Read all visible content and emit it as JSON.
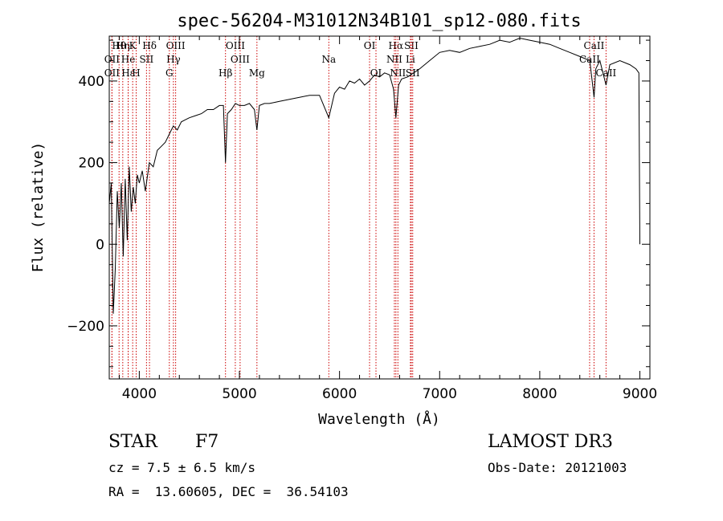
{
  "chart_data": {
    "type": "line",
    "title": "spec-56204-M31012N34B101_sp12-080.fits",
    "xlabel": "Wavelength (Å)",
    "ylabel": "Flux (relative)",
    "xlim": [
      3700,
      9100
    ],
    "ylim": [
      -330,
      510
    ],
    "xticks": [
      4000,
      5000,
      6000,
      7000,
      8000,
      9000
    ],
    "yticks": [
      -200,
      0,
      200,
      400
    ],
    "series": [
      {
        "name": "flux",
        "x": [
          3700,
          3720,
          3740,
          3760,
          3780,
          3800,
          3820,
          3840,
          3860,
          3880,
          3900,
          3920,
          3940,
          3960,
          3980,
          4000,
          4030,
          4060,
          4100,
          4140,
          4180,
          4220,
          4260,
          4300,
          4340,
          4380,
          4420,
          4460,
          4500,
          4560,
          4620,
          4680,
          4740,
          4800,
          4840,
          4861,
          4880,
          4920,
          4960,
          5000,
          5050,
          5100,
          5150,
          5175,
          5200,
          5250,
          5300,
          5400,
          5500,
          5600,
          5700,
          5800,
          5893,
          5950,
          6000,
          6050,
          6100,
          6150,
          6200,
          6250,
          6300,
          6350,
          6400,
          6450,
          6500,
          6540,
          6563,
          6590,
          6620,
          6680,
          6740,
          6800,
          6900,
          7000,
          7100,
          7200,
          7300,
          7400,
          7500,
          7600,
          7700,
          7800,
          7900,
          8000,
          8100,
          8200,
          8300,
          8400,
          8500,
          8542,
          8560,
          8600,
          8662,
          8700,
          8800,
          8900,
          8960,
          8990,
          9000
        ],
        "values": [
          100,
          150,
          -170,
          -60,
          130,
          40,
          150,
          -30,
          160,
          10,
          190,
          80,
          140,
          100,
          170,
          150,
          180,
          130,
          200,
          190,
          230,
          240,
          250,
          270,
          290,
          280,
          300,
          305,
          310,
          315,
          320,
          330,
          330,
          340,
          340,
          200,
          320,
          330,
          345,
          340,
          340,
          345,
          330,
          280,
          340,
          345,
          345,
          350,
          355,
          360,
          365,
          365,
          310,
          370,
          385,
          380,
          400,
          395,
          405,
          390,
          400,
          415,
          410,
          420,
          415,
          380,
          310,
          390,
          405,
          410,
          420,
          430,
          450,
          470,
          475,
          470,
          480,
          485,
          490,
          500,
          495,
          505,
          500,
          495,
          490,
          480,
          470,
          460,
          450,
          360,
          430,
          450,
          390,
          440,
          450,
          440,
          430,
          420,
          0
        ]
      }
    ],
    "lines": [
      {
        "label": "Hθ",
        "wave": 3798,
        "row": 1
      },
      {
        "label": "OII",
        "wave": 3727,
        "row": 2
      },
      {
        "label": "OII",
        "wave": 3727,
        "row": 3
      },
      {
        "label": "Hη",
        "wave": 3835,
        "row": 1
      },
      {
        "label": "He",
        "wave": 3889,
        "row": 2
      },
      {
        "label": "Hε",
        "wave": 3889,
        "row": 3
      },
      {
        "label": "K",
        "wave": 3934,
        "row": 1
      },
      {
        "label": "H",
        "wave": 3969,
        "row": 3
      },
      {
        "label": "SII",
        "wave": 4072,
        "row": 2
      },
      {
        "label": "Hδ",
        "wave": 4102,
        "row": 1
      },
      {
        "label": "OIII",
        "wave": 4363,
        "row": 1
      },
      {
        "label": "Hγ",
        "wave": 4341,
        "row": 2
      },
      {
        "label": "G",
        "wave": 4300,
        "row": 3
      },
      {
        "label": "Hβ",
        "wave": 4861,
        "row": 3
      },
      {
        "label": "OIII",
        "wave": 4959,
        "row": 1
      },
      {
        "label": "OIII",
        "wave": 5007,
        "row": 2
      },
      {
        "label": "Mg",
        "wave": 5175,
        "row": 3
      },
      {
        "label": "Na",
        "wave": 5893,
        "row": 2
      },
      {
        "label": "OI",
        "wave": 6300,
        "row": 1
      },
      {
        "label": "OI",
        "wave": 6364,
        "row": 3
      },
      {
        "label": "Hα",
        "wave": 6563,
        "row": 1
      },
      {
        "label": "NII",
        "wave": 6548,
        "row": 2
      },
      {
        "label": "NII",
        "wave": 6583,
        "row": 3
      },
      {
        "label": "SII",
        "wave": 6717,
        "row": 1
      },
      {
        "label": "Li",
        "wave": 6708,
        "row": 2
      },
      {
        "label": "SII",
        "wave": 6731,
        "row": 3
      },
      {
        "label": "CaII",
        "wave": 8542,
        "row": 1
      },
      {
        "label": "CaII",
        "wave": 8498,
        "row": 2
      },
      {
        "label": "CaII",
        "wave": 8662,
        "row": 3
      }
    ]
  },
  "info": {
    "class": "STAR",
    "subclass": "F7",
    "survey": "LAMOST DR3",
    "cz": "cz = 7.5 ± 6.5 km/s",
    "obs_date": "Obs-Date: 20121003",
    "radec": "RA =  13.60605, DEC =  36.54103"
  }
}
